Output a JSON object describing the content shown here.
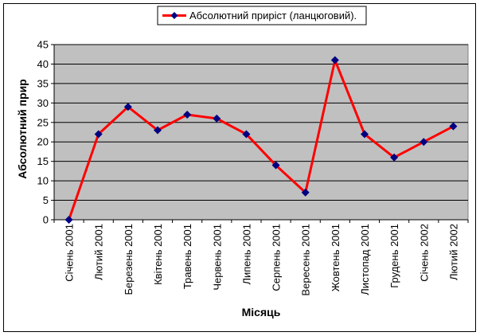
{
  "chart_data": {
    "type": "line",
    "title": "",
    "xlabel": "Місяць",
    "ylabel": "Абсолютний приріст",
    "ylabel_visible": "Абсолютний прир",
    "ylim": [
      0,
      45
    ],
    "yticks": [
      0,
      5,
      10,
      15,
      20,
      25,
      30,
      35,
      40,
      45
    ],
    "grid": "horizontal",
    "legend": "top",
    "categories": [
      "Січень 2001",
      "Лютий 2001",
      "Березень 2001",
      "Квітень 2001",
      "Травень 2001",
      "Червень 2001",
      "Липень 2001",
      "Серпень 2001",
      "Вересень 2001",
      "Жовтень 2001",
      "Листопад 2001",
      "Грудень 2001",
      "Січень 2002",
      "Лютий 2002"
    ],
    "series": [
      {
        "name": "Абсолютний приріст (ланцюговий).",
        "values": [
          0,
          22,
          29,
          23,
          27,
          26,
          22,
          14,
          7,
          41,
          22,
          16,
          20,
          24
        ],
        "line_color": "#ff0000",
        "marker_color": "#000080"
      }
    ],
    "plot_background": "#c0c0c0",
    "grid_color": "#000000"
  }
}
